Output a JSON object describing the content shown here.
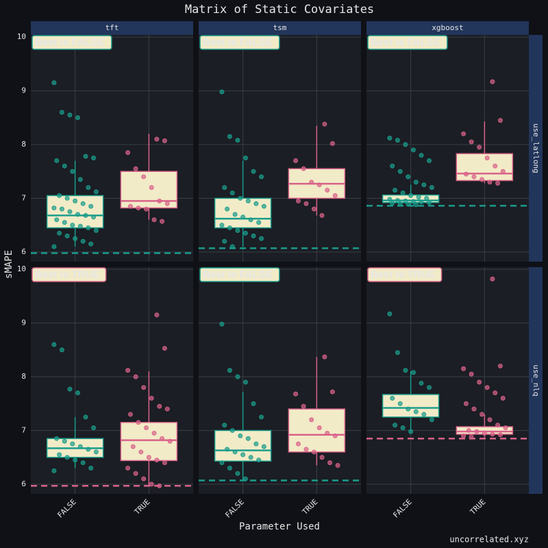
{
  "chart_data": {
    "type": "box",
    "title": "Matrix of Static Covariates",
    "x_label": "Parameter Used",
    "y_label": "sMAPE",
    "caption": "uncorrelated.xyz",
    "col_facets": [
      "tft",
      "tsm",
      "xgboost"
    ],
    "row_facets": [
      "use_latlong",
      "use_nlq"
    ],
    "categories": [
      "FALSE",
      "TRUE"
    ],
    "category_colors": [
      "#1a9c8c",
      "#d9628a"
    ],
    "box_fill": "#f2ebc7",
    "ylim": [
      5.82,
      10.04
    ],
    "yticks": [
      6,
      7,
      8,
      9,
      10
    ],
    "grid": true,
    "panels": [
      {
        "badge": "Best Is FALSE",
        "badge_color": "#1a9c8c",
        "baseline": 5.98,
        "baseline_color": "#1a9c8c",
        "boxes": [
          {
            "whisker_low": 6.1,
            "q1": 6.45,
            "median": 6.68,
            "q3": 7.05,
            "whisker_high": 7.7,
            "points": [
              9.15,
              8.6,
              8.55,
              8.5,
              7.78,
              7.75,
              7.7,
              7.6,
              7.5,
              7.35,
              7.2,
              7.12,
              7.05,
              7.0,
              6.95,
              6.9,
              6.85,
              6.82,
              6.8,
              6.75,
              6.7,
              6.68,
              6.65,
              6.6,
              6.55,
              6.5,
              6.48,
              6.45,
              6.4,
              6.35,
              6.3,
              6.25,
              6.2,
              6.15,
              6.1
            ]
          },
          {
            "whisker_low": 6.6,
            "q1": 6.82,
            "median": 6.95,
            "q3": 7.5,
            "whisker_high": 8.2,
            "points": [
              8.1,
              8.07,
              7.85,
              7.55,
              7.4,
              7.2,
              6.95,
              6.9,
              6.85,
              6.82,
              6.8,
              6.6,
              6.57
            ]
          }
        ]
      },
      {
        "badge": "Best Is FALSE",
        "badge_color": "#1a9c8c",
        "baseline": 6.07,
        "baseline_color": "#1a9c8c",
        "boxes": [
          {
            "whisker_low": 6.1,
            "q1": 6.45,
            "median": 6.62,
            "q3": 7.0,
            "whisker_high": 7.7,
            "points": [
              8.98,
              8.15,
              8.08,
              7.75,
              7.5,
              7.4,
              7.2,
              7.1,
              7.0,
              6.95,
              6.9,
              6.85,
              6.8,
              6.7,
              6.65,
              6.6,
              6.55,
              6.5,
              6.45,
              6.4,
              6.35,
              6.3,
              6.25,
              6.2,
              6.1
            ]
          },
          {
            "whisker_low": 6.68,
            "q1": 7.0,
            "median": 7.27,
            "q3": 7.55,
            "whisker_high": 8.35,
            "points": [
              8.38,
              8.02,
              7.7,
              7.55,
              7.3,
              7.25,
              7.15,
              7.05,
              6.95,
              6.9,
              6.8,
              6.68
            ]
          }
        ]
      },
      {
        "badge": "Best Is FALSE",
        "badge_color": "#1a9c8c",
        "baseline": 6.86,
        "baseline_color": "#1a9c8c",
        "boxes": [
          {
            "whisker_low": 6.88,
            "q1": 6.92,
            "median": 6.96,
            "q3": 7.06,
            "whisker_high": 7.25,
            "points": [
              8.12,
              8.08,
              8.0,
              7.9,
              7.8,
              7.7,
              7.6,
              7.5,
              7.4,
              7.3,
              7.25,
              7.2,
              7.15,
              7.1,
              7.05,
              7.02,
              7.0,
              6.98,
              6.96,
              6.95,
              6.94,
              6.93,
              6.92,
              6.91,
              6.9,
              6.89,
              6.88
            ]
          },
          {
            "whisker_low": 7.28,
            "q1": 7.33,
            "median": 7.46,
            "q3": 7.83,
            "whisker_high": 8.43,
            "points": [
              9.17,
              8.45,
              8.2,
              8.05,
              7.95,
              7.75,
              7.6,
              7.5,
              7.45,
              7.4,
              7.35,
              7.3,
              7.28
            ]
          }
        ]
      },
      {
        "badge": "Best Is TRUE",
        "badge_color": "#d9628a",
        "baseline": 5.97,
        "baseline_color": "#d9628a",
        "boxes": [
          {
            "whisker_low": 6.3,
            "q1": 6.5,
            "median": 6.67,
            "q3": 6.85,
            "whisker_high": 7.25,
            "points": [
              8.6,
              8.5,
              7.77,
              7.7,
              7.25,
              7.05,
              6.85,
              6.8,
              6.75,
              6.7,
              6.65,
              6.6,
              6.55,
              6.5,
              6.45,
              6.4,
              6.3,
              6.25
            ]
          },
          {
            "whisker_low": 5.97,
            "q1": 6.44,
            "median": 6.82,
            "q3": 7.15,
            "whisker_high": 8.1,
            "points": [
              9.15,
              8.53,
              8.12,
              8.0,
              7.8,
              7.6,
              7.45,
              7.4,
              7.3,
              7.15,
              7.05,
              6.95,
              6.85,
              6.8,
              6.7,
              6.6,
              6.5,
              6.45,
              6.4,
              6.3,
              6.2,
              6.1,
              6.0,
              5.97
            ]
          }
        ]
      },
      {
        "badge": "Best Is FALSE",
        "badge_color": "#1a9c8c",
        "baseline": 6.07,
        "baseline_color": "#1a9c8c",
        "boxes": [
          {
            "whisker_low": 6.07,
            "q1": 6.43,
            "median": 6.63,
            "q3": 7.0,
            "whisker_high": 7.72,
            "points": [
              8.98,
              8.12,
              8.0,
              7.9,
              7.5,
              7.25,
              7.1,
              7.0,
              6.9,
              6.85,
              6.75,
              6.7,
              6.65,
              6.6,
              6.55,
              6.5,
              6.45,
              6.4,
              6.3,
              6.2,
              6.1
            ]
          },
          {
            "whisker_low": 6.35,
            "q1": 6.6,
            "median": 6.92,
            "q3": 7.4,
            "whisker_high": 8.37,
            "points": [
              8.37,
              7.72,
              7.68,
              7.45,
              7.2,
              7.05,
              6.95,
              6.9,
              6.75,
              6.65,
              6.6,
              6.5,
              6.4,
              6.35
            ]
          }
        ]
      },
      {
        "badge": "Best Is TRUE",
        "badge_color": "#d9628a",
        "baseline": 6.85,
        "baseline_color": "#d9628a",
        "boxes": [
          {
            "whisker_low": 6.98,
            "q1": 7.25,
            "median": 7.42,
            "q3": 7.67,
            "whisker_high": 8.1,
            "points": [
              9.17,
              8.45,
              8.12,
              8.08,
              7.88,
              7.8,
              7.6,
              7.5,
              7.4,
              7.35,
              7.3,
              7.2,
              7.1,
              7.05,
              6.98
            ]
          },
          {
            "whisker_low": 6.87,
            "q1": 6.93,
            "median": 6.98,
            "q3": 7.07,
            "whisker_high": 7.3,
            "points": [
              9.82,
              8.2,
              8.15,
              8.05,
              7.9,
              7.8,
              7.7,
              7.6,
              7.5,
              7.4,
              7.3,
              7.2,
              7.1,
              7.05,
              7.0,
              6.98,
              6.95,
              6.93,
              6.92,
              6.9,
              6.88
            ]
          }
        ]
      }
    ]
  }
}
